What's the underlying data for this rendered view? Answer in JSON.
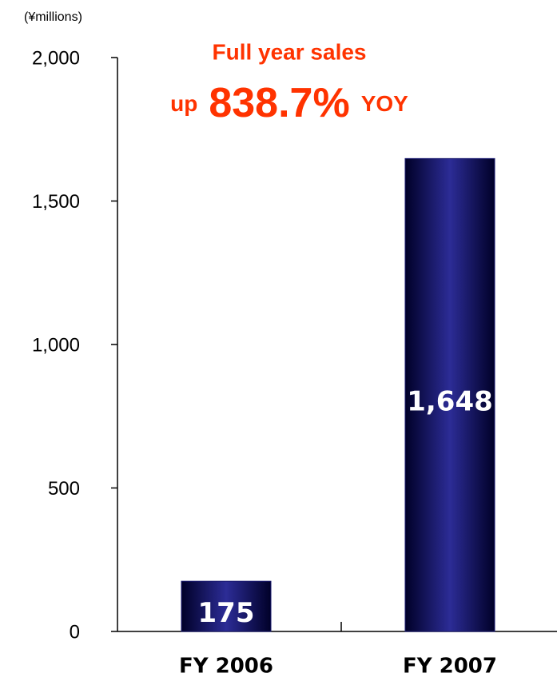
{
  "chart_data": {
    "type": "bar",
    "unit_label": "(¥millions)",
    "annotations": [
      "Full year sales",
      "up",
      "838.7%",
      "YOY"
    ],
    "categories": [
      "FY 2006",
      "FY 2007"
    ],
    "values": [
      175,
      1648
    ],
    "value_labels": [
      "175",
      "1,648"
    ],
    "color": "#1a1a70",
    "ylim": [
      0,
      2000
    ],
    "yticks": [
      0,
      500,
      {
        "value": 1000,
        "label": "1,000"
      },
      {
        "value": 1500,
        "label": "1,500"
      },
      {
        "value": 2000,
        "label": "2,000"
      }
    ],
    "grid": false
  }
}
